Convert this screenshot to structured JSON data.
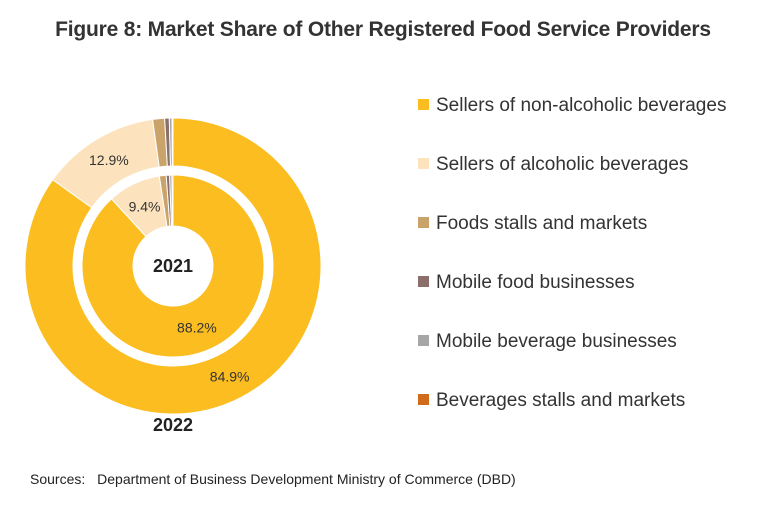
{
  "title": "Figure 8: Market Share of Other Registered Food Service Providers",
  "source": {
    "label": "Sources:",
    "text": "Department of Business Development Ministry of Commerce (DBD)"
  },
  "chart_data": {
    "type": "pie",
    "variant": "nested-donut",
    "legend_position": "right",
    "categories": [
      "Sellers of non-alcoholic beverages",
      "Sellers of alcoholic beverages",
      "Foods stalls and markets",
      "Mobile food businesses",
      "Mobile beverage businesses",
      "Beverages stalls and markets"
    ],
    "colors": [
      "#fbbd1f",
      "#fde3bd",
      "#c9a36a",
      "#8a6f6a",
      "#a6a6a6",
      "#d26a1c"
    ],
    "series": [
      {
        "name": "2021",
        "ring": "inner",
        "values": [
          88.2,
          9.4,
          1.2,
          0.6,
          0.4,
          0.2
        ],
        "labels": [
          "88.2%",
          "9.4%",
          "",
          "",
          "",
          ""
        ]
      },
      {
        "name": "2022",
        "ring": "outer",
        "values": [
          84.9,
          12.9,
          1.3,
          0.5,
          0.3,
          0.1
        ],
        "labels": [
          "84.9%",
          "12.9%",
          "",
          "",
          "",
          ""
        ]
      }
    ]
  }
}
